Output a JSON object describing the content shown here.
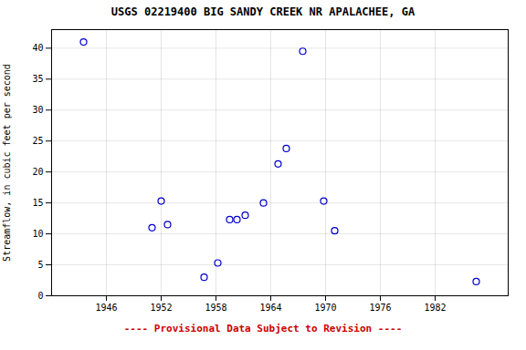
{
  "chart_data": {
    "type": "scatter",
    "title": "USGS 02219400 BIG SANDY CREEK NR APALACHEE, GA",
    "ylabel": "Streamflow, in cubic feet per second",
    "x": [
      1943.5,
      1951.0,
      1952.0,
      1952.7,
      1956.7,
      1958.2,
      1959.5,
      1960.3,
      1961.2,
      1963.2,
      1964.8,
      1965.7,
      1967.5,
      1969.8,
      1971.0,
      1986.5
    ],
    "values": [
      41.0,
      11.0,
      15.3,
      11.5,
      3.0,
      5.3,
      12.3,
      12.3,
      13.0,
      15.0,
      21.3,
      23.8,
      39.5,
      15.3,
      10.5,
      2.3
    ],
    "color": "#0000cc",
    "marker": "circle",
    "xlim": [
      1940,
      1990
    ],
    "ylim": [
      0,
      43
    ],
    "xticks": [
      1946,
      1952,
      1958,
      1964,
      1970,
      1976,
      1982
    ],
    "yticks": [
      0,
      5,
      10,
      15,
      20,
      25,
      30,
      35,
      40
    ],
    "grid": true,
    "annotations": [
      {
        "text": "---- Provisional Data Subject to Revision ----",
        "color": "#cc0000"
      }
    ]
  }
}
